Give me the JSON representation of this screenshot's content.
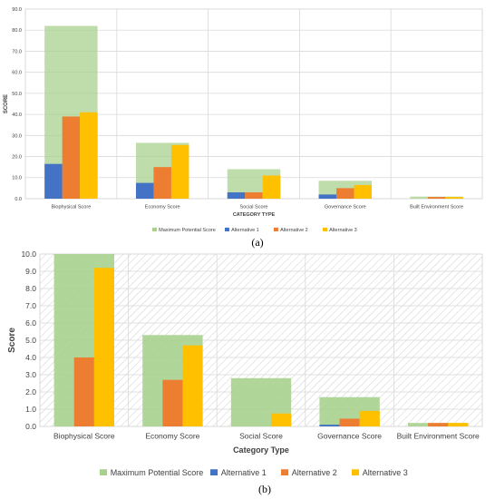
{
  "colors": {
    "max": "#a9d18e",
    "alt1": "#4472c4",
    "alt2": "#ed7d31",
    "alt3": "#ffc000",
    "grid": "#d9d9d9",
    "hatch": "#cfcfcf"
  },
  "chart_data": [
    {
      "type": "bar",
      "panel_label": "(a)",
      "xlabel": "CATEGORY TYPE",
      "ylabel": "SCORE",
      "ylim": [
        0,
        90
      ],
      "yticks": [
        "0.0",
        "10.0",
        "20.0",
        "30.0",
        "40.0",
        "50.0",
        "60.0",
        "70.0",
        "80.0",
        "90.0"
      ],
      "categories": [
        "Biophysical Score",
        "Economy Score",
        "Social Score",
        "Governance Score",
        "Built Environment Score"
      ],
      "series": [
        {
          "name": "Maximum Potential Score",
          "values": [
            82,
            26.5,
            14,
            8.5,
            1
          ]
        },
        {
          "name": "Alternative 1",
          "values": [
            16.5,
            7.5,
            3,
            2,
            0
          ]
        },
        {
          "name": "Alternative 2",
          "values": [
            39,
            15,
            3,
            5,
            0.8
          ]
        },
        {
          "name": "Alternative 3",
          "values": [
            41,
            25.5,
            11,
            6.5,
            0.8
          ]
        }
      ],
      "legend_position": "bottom",
      "grid": true
    },
    {
      "type": "bar",
      "panel_label": "(b)",
      "xlabel": "Category Type",
      "ylabel": "Score",
      "ylim": [
        0,
        10
      ],
      "yticks": [
        "0.0",
        "1.0",
        "2.0",
        "3.0",
        "4.0",
        "5.0",
        "6.0",
        "7.0",
        "8.0",
        "9.0",
        "10.0"
      ],
      "categories": [
        "Biophysical Score",
        "Economy Score",
        "Social Score",
        "Governance Score",
        "Built Environment Score"
      ],
      "series": [
        {
          "name": "Maximum Potential Score",
          "values": [
            10,
            5.3,
            2.8,
            1.7,
            0.2
          ]
        },
        {
          "name": "Alternative 1",
          "values": [
            0,
            0,
            0,
            0.1,
            0
          ]
        },
        {
          "name": "Alternative 2",
          "values": [
            4,
            2.7,
            0,
            0.45,
            0.2
          ]
        },
        {
          "name": "Alternative 3",
          "values": [
            9.2,
            4.7,
            0.75,
            0.9,
            0.2
          ]
        }
      ],
      "legend_position": "bottom",
      "grid": true,
      "hatched_background": true
    }
  ]
}
